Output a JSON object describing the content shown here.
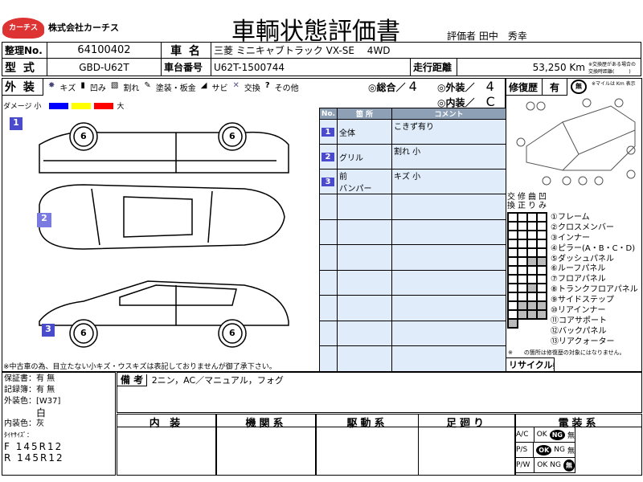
{
  "company": {
    "logo_text": "カーチス",
    "name": "株式会社カーチス"
  },
  "title": "車輌状態評価書",
  "evaluator": "評価者 田中　秀幸",
  "row1": {
    "no_label": "整理No.",
    "no_value": "64100402",
    "name_label": "車 名",
    "name_value": "三菱 ミニキャブトラック VX-SE　 4WD"
  },
  "row2": {
    "type_label": "型 式",
    "type_value": "GBD-U62T",
    "chassis_label": "車台番号",
    "chassis_value": "U62T-1500744",
    "mileage_label": "走行距離",
    "mileage_value": "53,250 Km",
    "mileage_note": "※交換歴がある場合の交換時距離(　　　)"
  },
  "exterior": {
    "label": "外 装",
    "legend": [
      "キズ",
      "凹み",
      "割れ",
      "塗装・板金",
      "サビ",
      "交換",
      "その他"
    ],
    "overall": "◎総合／",
    "overall_value": "4",
    "ext": "◎外装／",
    "ext_value": "4",
    "int": "◎内装／",
    "int_value": "C",
    "damage_label": "ダメージ 小",
    "damage_large": "大",
    "damage_colors": [
      "#0000ff",
      "#ffff00",
      "#ff0000"
    ],
    "wheel_label": "6",
    "note": "※中古車の為、目立たない小キズ・ウスキズは表記しておりませんが御了承下さい。",
    "markers": [
      "1",
      "2",
      "3"
    ]
  },
  "damage_table": {
    "headers": [
      "No.",
      "箇 所",
      "コメント"
    ],
    "rows": [
      {
        "no": "1",
        "part": "全体",
        "comment": "こきず有り"
      },
      {
        "no": "2",
        "part": "グリル",
        "comment": "割れ 小"
      },
      {
        "no": "3",
        "part": "前\nバンパー",
        "comment": "キズ 小"
      },
      {
        "no": "",
        "part": "",
        "comment": ""
      },
      {
        "no": "",
        "part": "",
        "comment": ""
      },
      {
        "no": "",
        "part": "",
        "comment": ""
      },
      {
        "no": "",
        "part": "",
        "comment": ""
      },
      {
        "no": "",
        "part": "",
        "comment": ""
      },
      {
        "no": "",
        "part": "",
        "comment": ""
      },
      {
        "no": "",
        "part": "",
        "comment": ""
      }
    ]
  },
  "repair": {
    "label": "修復歴",
    "value": "有",
    "stamp": "無",
    "mile_note": "※マイルは Km 表示",
    "col_headers": [
      "交\n換",
      "修\n正",
      "曲\nり",
      "凹\nみ"
    ],
    "parts": [
      "①フレーム",
      "②クロスメンバー",
      "③インナー",
      "④ピラー(A・B・C・D)",
      "⑤ダッシュパネル",
      "⑥ルーフパネル",
      "⑦フロアパネル",
      "⑧トランクフロアパネル",
      "⑨サイドステップ",
      "⑩リアインナー",
      "⑪コアサポート",
      "⑫バックパネル",
      "⑬リアクォーター"
    ],
    "gray": [
      [],
      [],
      [],
      [],
      [],
      [
        2,
        3
      ],
      [],
      [],
      [
        2
      ],
      [],
      [
        1,
        2,
        3
      ],
      [
        1,
        2,
        3
      ],
      [
        0
      ]
    ],
    "note": "※　　の箇所は修復歴の対象にはなりません。",
    "recycle": "リサイクル券"
  },
  "bottom": {
    "warranty": "保証書：有 無",
    "warranty_sel": "有",
    "record": "記録簿：有 無",
    "record_sel": "有",
    "color_label": "外装色：[W37]",
    "color": "白",
    "int_color": "内装色：灰",
    "tire_label": "ﾀｲﾔｻｲｽﾞ：",
    "tire_f": "F 145R12",
    "tire_r": "R 145R12",
    "remarks_label": "備 考",
    "remarks": "2ニン，AC／マニュアル，フォグ",
    "columns": [
      "内 装",
      "機関系",
      "駆動系",
      "足廻り",
      "電装系"
    ],
    "electric": [
      {
        "item": "A/C",
        "opts": [
          "OK",
          "NG",
          "無"
        ],
        "sel": "NG"
      },
      {
        "item": "P/S",
        "opts": [
          "OK",
          "NG",
          "無"
        ],
        "sel": "OK"
      },
      {
        "item": "P/W",
        "opts": [
          "OK",
          "NG",
          "無"
        ],
        "sel": "無"
      }
    ]
  }
}
